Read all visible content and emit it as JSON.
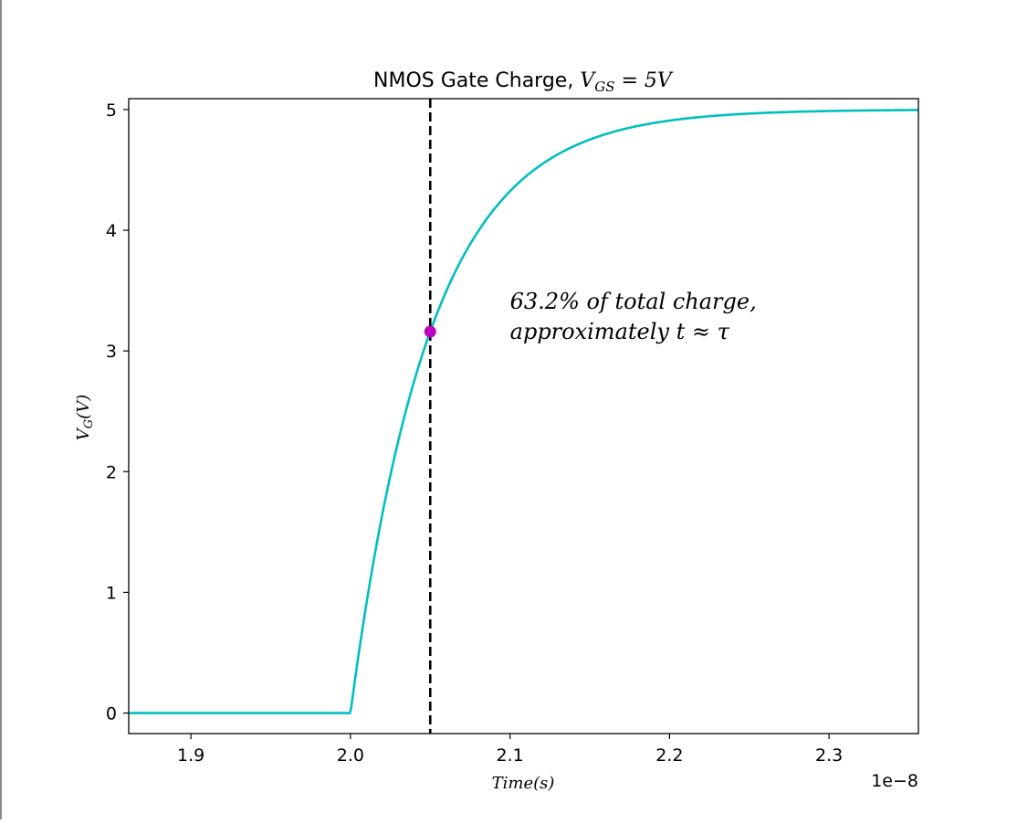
{
  "chart_data": {
    "type": "line",
    "title": "NMOS Gate Charge, ",
    "title_math": "V_GS = 5V",
    "title_math_main": "V",
    "title_math_sub": "GS",
    "title_math_rest": " = 5V",
    "xlabel": "Time(s)",
    "ylabel_main": "V",
    "ylabel_sub": "G",
    "ylabel_rest": "(V)",
    "x_offset_label": "1e−8",
    "x_scale": 1e-08,
    "xlim": [
      1.861,
      2.356
    ],
    "ylim": [
      -0.17,
      5.09
    ],
    "x_ticks": [
      1.9,
      2.0,
      2.1,
      2.2,
      2.3
    ],
    "x_tick_labels": [
      "1.9",
      "2.0",
      "2.1",
      "2.2",
      "2.3"
    ],
    "y_ticks": [
      0,
      1,
      2,
      3,
      4,
      5
    ],
    "y_tick_labels": [
      "0",
      "1",
      "2",
      "3",
      "4",
      "5"
    ],
    "grid": false,
    "series": [
      {
        "color": "#00bfbf",
        "model": "V = 5(1 - exp(-(t - 2.0)/0.05)) for t >= 2.0, else 0 (t in units of 1e-8 s)",
        "params": {
          "v_max": 5,
          "t_on": 2.0,
          "tau": 0.05
        },
        "x_range": [
          1.861,
          2.356
        ]
      }
    ],
    "marker": {
      "x": 2.05,
      "y": 3.16,
      "color": "#bf00bf"
    },
    "vline": {
      "x": 2.05,
      "style": "dashed",
      "color": "#000000"
    },
    "annotation": {
      "line1": "63.2% of total charge,",
      "line2": "approximately t ≈ τ",
      "x": 2.1,
      "y": 3.35
    }
  }
}
